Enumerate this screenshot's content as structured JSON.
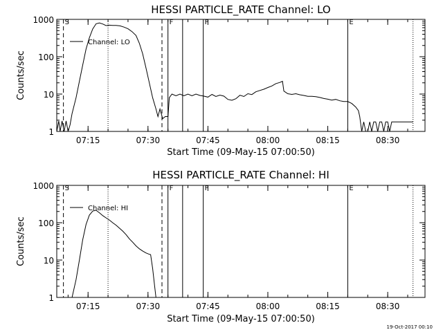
{
  "footer": {
    "timestamp": "19-Oct-2017 00:10"
  },
  "chart_data": [
    {
      "type": "line",
      "title": "HESSI PARTICLE_RATE Channel: LO",
      "xlabel": "Start Time (09-May-15 07:00:50)",
      "ylabel": "Counts/sec",
      "yscale": "log",
      "ylim": [
        1,
        1000
      ],
      "xlim_minutes": [
        7.16,
        39.33
      ],
      "xlim_labels": [
        "07:07:10",
        "08:39:20"
      ],
      "x_ticks": [
        "07:15",
        "07:30",
        "07:45",
        "08:00",
        "08:15",
        "08:30"
      ],
      "y_ticks": [
        "1",
        "10",
        "100",
        "1000"
      ],
      "legend": {
        "label": "Channel: LO",
        "placement": "top-left"
      },
      "flag_lines": [
        {
          "label": "S",
          "time": "07:08:50",
          "style": "dashed"
        },
        {
          "label": "",
          "time": "07:20:00",
          "style": "dotted"
        },
        {
          "label": "",
          "time": "07:33:30",
          "style": "dashed"
        },
        {
          "label": "F",
          "time": "07:35:00",
          "style": "solid"
        },
        {
          "label": "",
          "time": "07:38:40",
          "style": "solid"
        },
        {
          "label": "F",
          "time": "07:43:50",
          "style": "solid"
        },
        {
          "label": "E",
          "time": "08:20:00",
          "style": "solid"
        },
        {
          "label": "",
          "time": "08:36:20",
          "style": "dotted"
        }
      ],
      "series": [
        {
          "name": "Channel: LO",
          "points": [
            [
              "07:07:10",
              1
            ],
            [
              "07:07:40",
              1.9
            ],
            [
              "07:08:00",
              1
            ],
            [
              "07:08:30",
              1.9
            ],
            [
              "07:09:00",
              1
            ],
            [
              "07:09:30",
              1.9
            ],
            [
              "07:10:00",
              1
            ],
            [
              "07:10:30",
              1.5
            ],
            [
              "07:11:00",
              3
            ],
            [
              "07:12:00",
              8
            ],
            [
              "07:12:50",
              22
            ],
            [
              "07:13:40",
              60
            ],
            [
              "07:14:30",
              160
            ],
            [
              "07:15:20",
              320
            ],
            [
              "07:16:10",
              550
            ],
            [
              "07:17:00",
              760
            ],
            [
              "07:17:50",
              800
            ],
            [
              "07:18:40",
              750
            ],
            [
              "07:19:30",
              680
            ],
            [
              "07:20:20",
              700
            ],
            [
              "07:21:10",
              690
            ],
            [
              "07:22:00",
              690
            ],
            [
              "07:23:00",
              670
            ],
            [
              "07:24:00",
              620
            ],
            [
              "07:25:00",
              560
            ],
            [
              "07:26:00",
              470
            ],
            [
              "07:27:00",
              370
            ],
            [
              "07:27:50",
              230
            ],
            [
              "07:28:40",
              120
            ],
            [
              "07:29:30",
              50
            ],
            [
              "07:30:20",
              20
            ],
            [
              "07:31:10",
              8
            ],
            [
              "07:32:00",
              4
            ],
            [
              "07:32:30",
              2.5
            ],
            [
              "07:33:00",
              4
            ],
            [
              "07:33:40",
              2.2
            ],
            [
              "07:34:20",
              2.5
            ],
            [
              "07:35:00",
              2.5
            ],
            [
              "07:35:20",
              8
            ],
            [
              "07:36:00",
              10
            ],
            [
              "07:37:00",
              9
            ],
            [
              "07:38:00",
              10
            ],
            [
              "07:39:00",
              9
            ],
            [
              "07:40:00",
              10
            ],
            [
              "07:41:00",
              9
            ],
            [
              "07:42:00",
              10
            ],
            [
              "07:43:00",
              9.2
            ],
            [
              "07:44:00",
              8.8
            ],
            [
              "07:45:00",
              8.3
            ],
            [
              "07:46:00",
              9.8
            ],
            [
              "07:47:00",
              8.6
            ],
            [
              "07:48:00",
              9.4
            ],
            [
              "07:49:00",
              8.8
            ],
            [
              "07:50:00",
              7.2
            ],
            [
              "07:51:00",
              6.8
            ],
            [
              "07:52:00",
              7.5
            ],
            [
              "07:53:00",
              9.3
            ],
            [
              "07:54:00",
              8.6
            ],
            [
              "07:55:00",
              10.2
            ],
            [
              "07:56:00",
              9.7
            ],
            [
              "07:57:00",
              11.5
            ],
            [
              "07:58:00",
              12.5
            ],
            [
              "07:59:00",
              13.5
            ],
            [
              "08:00:00",
              15
            ],
            [
              "08:01:00",
              16.5
            ],
            [
              "08:02:00",
              19
            ],
            [
              "08:03:00",
              20.5
            ],
            [
              "08:03:40",
              22
            ],
            [
              "08:04:00",
              12
            ],
            [
              "08:05:00",
              10.2
            ],
            [
              "08:06:00",
              9.8
            ],
            [
              "08:07:00",
              10.2
            ],
            [
              "08:08:00",
              9.6
            ],
            [
              "08:09:00",
              9.2
            ],
            [
              "08:10:00",
              8.7
            ],
            [
              "08:11:00",
              8.7
            ],
            [
              "08:12:00",
              8.5
            ],
            [
              "08:13:00",
              8.1
            ],
            [
              "08:14:00",
              7.6
            ],
            [
              "08:15:00",
              7.3
            ],
            [
              "08:16:00",
              6.9
            ],
            [
              "08:17:00",
              7.2
            ],
            [
              "08:18:00",
              6.6
            ],
            [
              "08:19:00",
              6.3
            ],
            [
              "08:20:00",
              6.3
            ],
            [
              "08:21:00",
              5.6
            ],
            [
              "08:22:00",
              4.5
            ],
            [
              "08:22:40",
              3.6
            ],
            [
              "08:23:00",
              2.5
            ],
            [
              "08:23:30",
              1
            ],
            [
              "08:24:00",
              1.8
            ],
            [
              "08:24:30",
              1
            ],
            [
              "08:25:00",
              1
            ],
            [
              "08:25:30",
              1.8
            ],
            [
              "08:26:00",
              1
            ],
            [
              "08:26:30",
              1.8
            ],
            [
              "08:27:00",
              1.8
            ],
            [
              "08:27:30",
              1
            ],
            [
              "08:28:00",
              1.8
            ],
            [
              "08:28:30",
              1.8
            ],
            [
              "08:29:00",
              1
            ],
            [
              "08:29:30",
              1.8
            ],
            [
              "08:30:00",
              1.8
            ],
            [
              "08:30:30",
              1
            ],
            [
              "08:31:00",
              1.8
            ],
            [
              "08:32:00",
              1.8
            ],
            [
              "08:33:00",
              1.8
            ],
            [
              "08:34:00",
              1.8
            ],
            [
              "08:35:00",
              1.8
            ],
            [
              "08:36:20",
              1.8
            ]
          ]
        }
      ]
    },
    {
      "type": "line",
      "title": "HESSI PARTICLE_RATE Channel: HI",
      "xlabel": "Start Time (09-May-15 07:00:50)",
      "ylabel": "Counts/sec",
      "yscale": "log",
      "ylim": [
        1,
        1000
      ],
      "xlim_minutes": [
        7.16,
        39.33
      ],
      "xlim_labels": [
        "07:07:10",
        "08:39:20"
      ],
      "x_ticks": [
        "07:15",
        "07:30",
        "07:45",
        "08:00",
        "08:15",
        "08:30"
      ],
      "y_ticks": [
        "1",
        "10",
        "100",
        "1000"
      ],
      "legend": {
        "label": "Channel: HI",
        "placement": "top-left"
      },
      "flag_lines": [
        {
          "label": "S",
          "time": "07:08:50",
          "style": "dashed"
        },
        {
          "label": "",
          "time": "07:20:00",
          "style": "dotted"
        },
        {
          "label": "",
          "time": "07:33:30",
          "style": "dashed"
        },
        {
          "label": "F",
          "time": "07:35:00",
          "style": "solid"
        },
        {
          "label": "",
          "time": "07:38:40",
          "style": "solid"
        },
        {
          "label": "F",
          "time": "07:43:50",
          "style": "solid"
        },
        {
          "label": "E",
          "time": "08:20:00",
          "style": "solid"
        },
        {
          "label": "",
          "time": "08:36:20",
          "style": "dotted"
        }
      ],
      "series": [
        {
          "name": "Channel: HI",
          "points": [
            [
              "07:10:30",
              0.8
            ],
            [
              "07:11:00",
              1
            ],
            [
              "07:12:00",
              3
            ],
            [
              "07:12:50",
              10
            ],
            [
              "07:13:40",
              35
            ],
            [
              "07:14:30",
              90
            ],
            [
              "07:15:20",
              160
            ],
            [
              "07:16:10",
              205
            ],
            [
              "07:17:00",
              215
            ],
            [
              "07:17:50",
              185
            ],
            [
              "07:18:40",
              155
            ],
            [
              "07:19:30",
              135
            ],
            [
              "07:20:20",
              118
            ],
            [
              "07:21:10",
              100
            ],
            [
              "07:22:00",
              86
            ],
            [
              "07:22:50",
              72
            ],
            [
              "07:23:40",
              60
            ],
            [
              "07:24:30",
              48
            ],
            [
              "07:25:20",
              37
            ],
            [
              "07:26:10",
              30
            ],
            [
              "07:27:00",
              24
            ],
            [
              "07:27:50",
              20
            ],
            [
              "07:28:40",
              17.5
            ],
            [
              "07:29:30",
              15.5
            ],
            [
              "07:30:10",
              14.5
            ],
            [
              "07:30:40",
              14
            ],
            [
              "07:31:10",
              6
            ],
            [
              "07:31:40",
              2
            ],
            [
              "07:32:00",
              1
            ],
            [
              "07:32:20",
              0.8
            ]
          ]
        }
      ]
    }
  ]
}
